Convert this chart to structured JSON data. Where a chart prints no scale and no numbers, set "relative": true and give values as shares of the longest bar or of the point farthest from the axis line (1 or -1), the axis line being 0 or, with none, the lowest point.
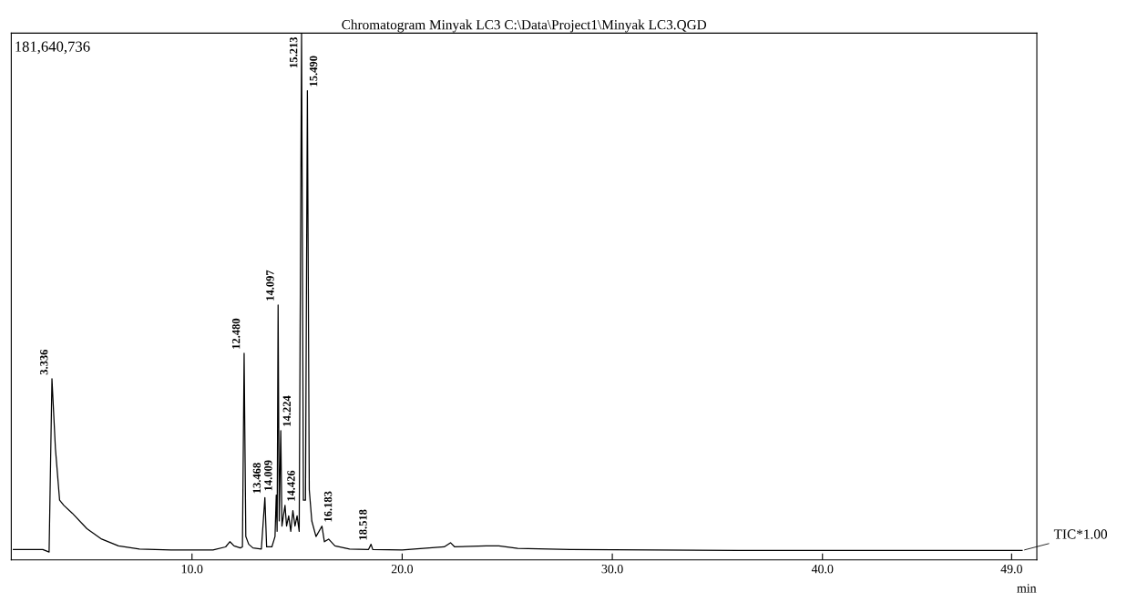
{
  "chart_data": {
    "type": "line",
    "title": "Chromatogram Minyak LC3 C:\\Data\\Project1\\Minyak LC3.QGD",
    "xlabel": "min",
    "relative": true,
    "tick_labels": "x",
    "grid": false,
    "legend": false,
    "marker": "none",
    "line_style": "solid",
    "xlim": [
      1.4,
      50.2
    ],
    "xticks": [
      {
        "value": 10,
        "label": "10.0"
      },
      {
        "value": 20,
        "label": "20.0"
      },
      {
        "value": 30,
        "label": "30.0"
      },
      {
        "value": 40,
        "label": "40.0"
      },
      {
        "value": 49,
        "label": "49.0"
      }
    ],
    "series": [
      {
        "name": "TIC*1.00",
        "color": "#000000",
        "x": [
          1.5,
          2.9,
          3.2,
          3.336,
          3.5,
          3.7,
          3.9,
          4.3,
          5.0,
          5.7,
          6.5,
          7.5,
          9.0,
          11.0,
          11.6,
          11.8,
          12.0,
          12.3,
          12.4,
          12.48,
          12.56,
          12.7,
          12.9,
          13.3,
          13.468,
          13.55,
          13.8,
          13.95,
          14.009,
          14.05,
          14.097,
          14.15,
          14.224,
          14.28,
          14.35,
          14.426,
          14.5,
          14.6,
          14.7,
          14.8,
          14.9,
          15.0,
          15.1,
          15.213,
          15.3,
          15.4,
          15.49,
          15.58,
          15.7,
          15.9,
          16.183,
          16.3,
          16.5,
          16.8,
          17.5,
          18.4,
          18.518,
          18.6,
          20.0,
          21.0,
          22.0,
          22.3,
          22.5,
          24.0,
          24.6,
          25.5,
          28.0,
          32.0,
          36.0,
          42.0,
          49.5
        ],
        "values": [
          0.005,
          0.005,
          0.0,
          0.334,
          0.2,
          0.1,
          0.09,
          0.075,
          0.045,
          0.025,
          0.012,
          0.006,
          0.004,
          0.004,
          0.01,
          0.02,
          0.012,
          0.008,
          0.01,
          0.383,
          0.03,
          0.015,
          0.008,
          0.006,
          0.105,
          0.01,
          0.01,
          0.03,
          0.11,
          0.04,
          0.476,
          0.06,
          0.234,
          0.05,
          0.07,
          0.09,
          0.05,
          0.07,
          0.04,
          0.08,
          0.05,
          0.07,
          0.04,
          1.0,
          0.1,
          0.1,
          0.889,
          0.12,
          0.06,
          0.03,
          0.05,
          0.02,
          0.025,
          0.012,
          0.006,
          0.005,
          0.015,
          0.005,
          0.004,
          0.007,
          0.01,
          0.018,
          0.01,
          0.012,
          0.012,
          0.007,
          0.005,
          0.004,
          0.003,
          0.003,
          0.003
        ]
      }
    ],
    "annotations": [
      "181,640,736",
      {
        "text": "3.336",
        "x": 3.336,
        "y": 0.334
      },
      {
        "text": "12.480",
        "x": 12.48,
        "y": 0.383
      },
      {
        "text": "13.468",
        "x": 13.468,
        "y": 0.105
      },
      {
        "text": "14.009",
        "x": 14.009,
        "y": 0.11
      },
      {
        "text": "14.097",
        "x": 14.097,
        "y": 0.476
      },
      {
        "text": "14.224",
        "x": 14.224,
        "y": 0.234
      },
      {
        "text": "14.426",
        "x": 14.426,
        "y": 0.09
      },
      {
        "text": "15.213",
        "x": 15.213,
        "y": 1.0
      },
      {
        "text": "15.490",
        "x": 15.49,
        "y": 0.889
      },
      {
        "text": "16.183",
        "x": 16.183,
        "y": 0.05
      },
      {
        "text": "18.518",
        "x": 18.518,
        "y": 0.015
      }
    ]
  }
}
